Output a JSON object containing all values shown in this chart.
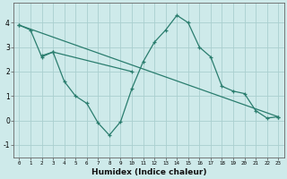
{
  "line1_x": [
    0,
    1,
    2,
    3,
    4,
    5,
    6,
    7,
    8,
    9,
    10,
    11,
    12,
    13,
    14,
    15,
    16,
    17,
    18,
    19,
    20,
    21,
    22,
    23
  ],
  "line1_y": [
    3.9,
    3.7,
    2.6,
    2.8,
    1.6,
    1.0,
    0.7,
    -0.1,
    -0.6,
    -0.05,
    1.3,
    2.4,
    3.2,
    3.7,
    4.3,
    4.0,
    3.0,
    2.6,
    1.4,
    1.2,
    1.1,
    0.4,
    0.1,
    0.15
  ],
  "line2_x": [
    0,
    23
  ],
  "line2_y": [
    3.9,
    0.15
  ],
  "line3_x": [
    2,
    3,
    10
  ],
  "line3_y": [
    2.65,
    2.8,
    2.0
  ],
  "color": "#2a7d6e",
  "bg_color": "#ceeaea",
  "grid_color": "#aacfcf",
  "xlabel": "Humidex (Indice chaleur)",
  "ylim": [
    -1.5,
    4.8
  ],
  "xlim": [
    -0.5,
    23.5
  ],
  "xticks": [
    0,
    1,
    2,
    3,
    4,
    5,
    6,
    7,
    8,
    9,
    10,
    11,
    12,
    13,
    14,
    15,
    16,
    17,
    18,
    19,
    20,
    21,
    22,
    23
  ],
  "yticks": [
    -1,
    0,
    1,
    2,
    3,
    4
  ],
  "marker": "+"
}
